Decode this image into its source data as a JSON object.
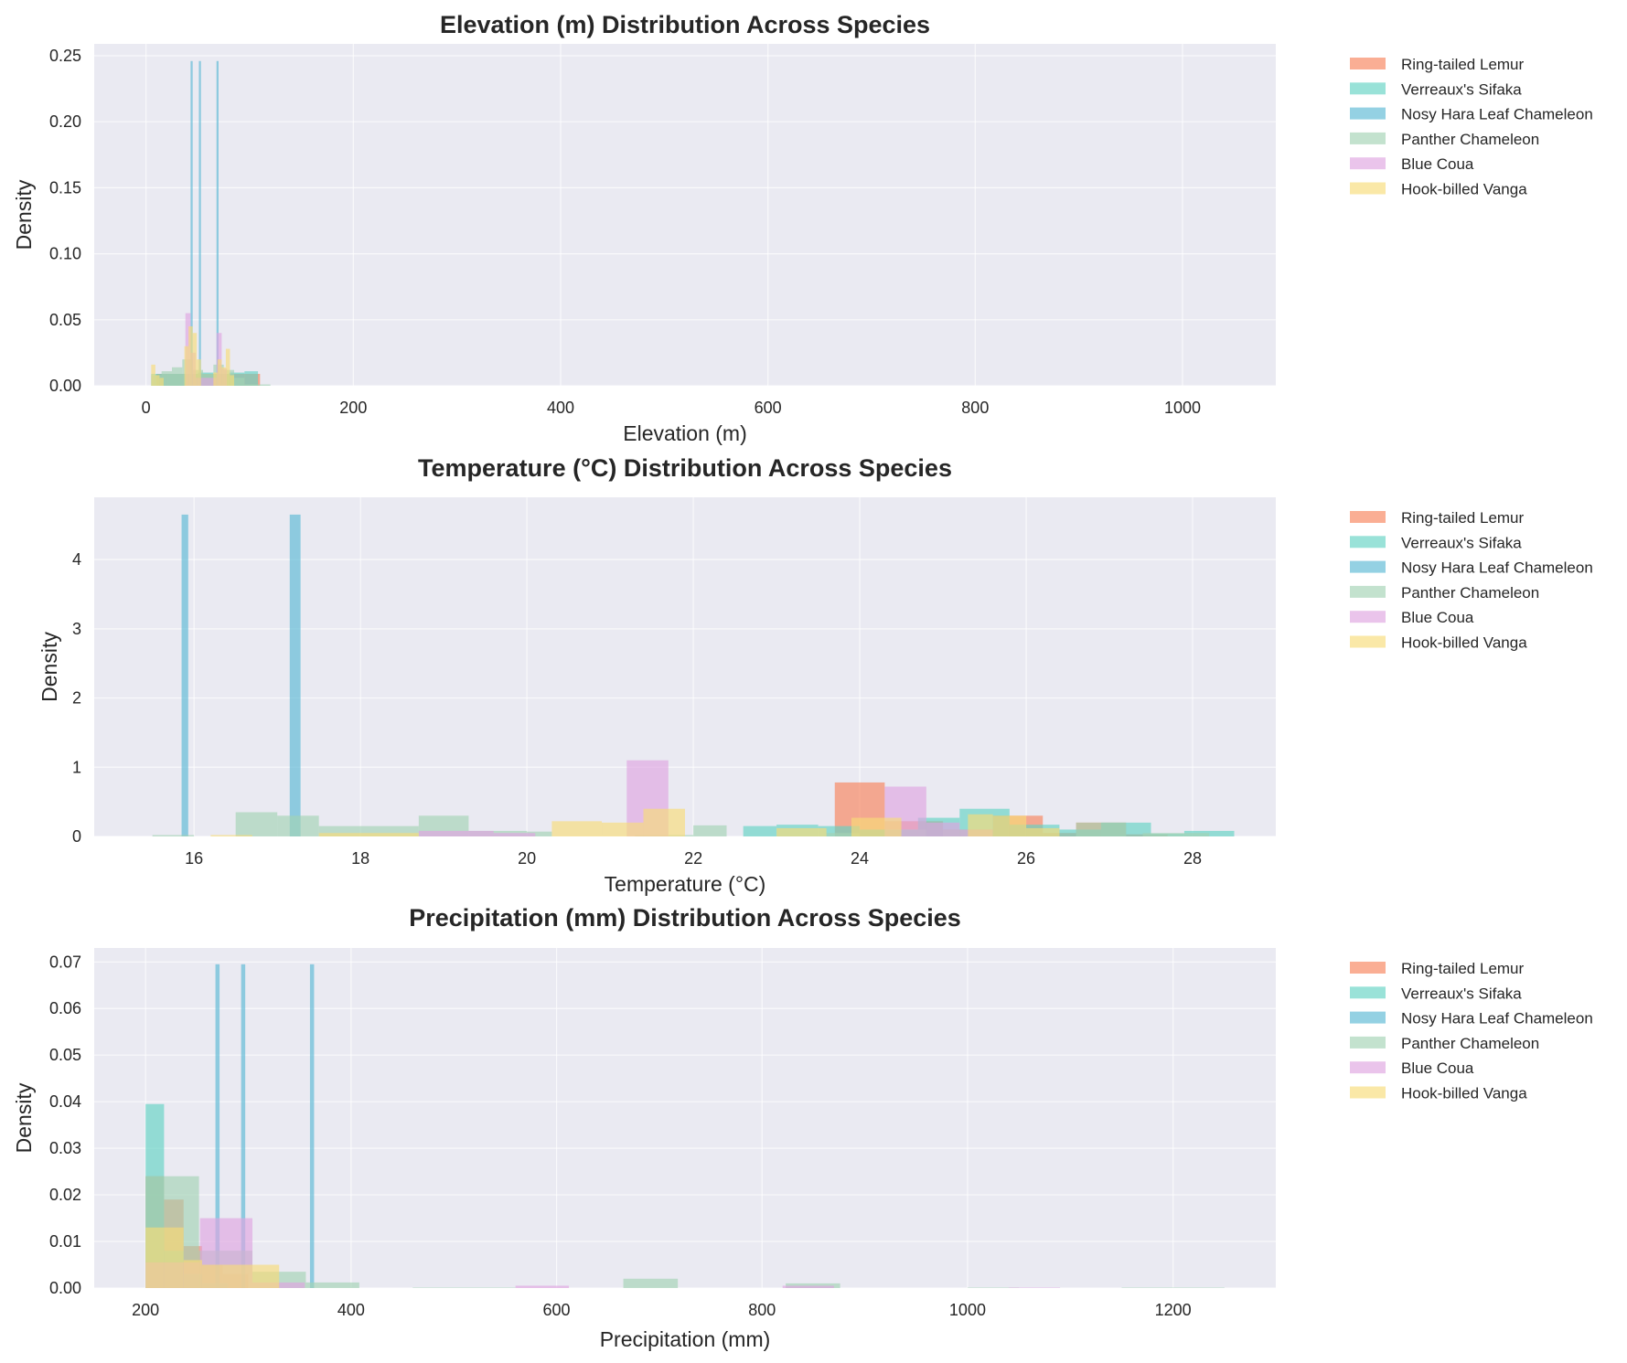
{
  "legend_entries": [
    {
      "name": "Ring-tailed Lemur",
      "color": "#f7825a"
    },
    {
      "name": "Verreaux's Sifaka",
      "color": "#62d2c3"
    },
    {
      "name": "Nosy Hara Leaf Chameleon",
      "color": "#5bb8d4"
    },
    {
      "name": "Panther Chameleon",
      "color": "#a3d2b4"
    },
    {
      "name": "Blue Coua",
      "color": "#dea5e0"
    },
    {
      "name": "Hook-billed Vanga",
      "color": "#f8dc78"
    }
  ],
  "chart_data": [
    {
      "type": "histogram",
      "title": "Elevation (m) Distribution Across Species",
      "xlabel": "Elevation (m)",
      "ylabel": "Density",
      "xlim": [
        -50,
        1090
      ],
      "ylim": [
        0,
        0.259
      ],
      "xticks": [
        0,
        200,
        400,
        600,
        800,
        1000
      ],
      "yticks": [
        0.0,
        0.05,
        0.1,
        0.15,
        0.2,
        0.25
      ],
      "ytick_labels": [
        "0.00",
        "0.05",
        "0.10",
        "0.15",
        "0.20",
        "0.25"
      ],
      "grid": true,
      "legend_position": "outside-right",
      "series": [
        {
          "name": "Ring-tailed Lemur",
          "bins": [
            [
              10,
              25,
              0.009
            ],
            [
              25,
              40,
              0.009
            ],
            [
              40,
              55,
              0.009
            ],
            [
              55,
              70,
              0.009
            ],
            [
              70,
              85,
              0.009
            ],
            [
              85,
              100,
              0.009
            ],
            [
              100,
              110,
              0.009
            ]
          ]
        },
        {
          "name": "Verreaux's Sifaka",
          "bins": [
            [
              5,
              20,
              0.009
            ],
            [
              20,
              35,
              0.009
            ],
            [
              35,
              50,
              0.009
            ],
            [
              50,
              65,
              0.01
            ],
            [
              65,
              80,
              0.009
            ],
            [
              80,
              95,
              0.01
            ],
            [
              95,
              108,
              0.011
            ]
          ]
        },
        {
          "name": "Nosy Hara Leaf Chameleon",
          "bins": [
            [
              43,
              45,
              0.246
            ],
            [
              51,
              53,
              0.246
            ],
            [
              68,
              70,
              0.246
            ]
          ]
        },
        {
          "name": "Panther Chameleon",
          "bins": [
            [
              5,
              15,
              0.008
            ],
            [
              15,
              25,
              0.011
            ],
            [
              25,
              35,
              0.014
            ],
            [
              35,
              45,
              0.02
            ],
            [
              45,
              55,
              0.012
            ],
            [
              55,
              65,
              0.009
            ],
            [
              65,
              75,
              0.016
            ],
            [
              75,
              85,
              0.012
            ],
            [
              85,
              95,
              0.006
            ],
            [
              95,
              120,
              0.001
            ]
          ]
        },
        {
          "name": "Blue Coua",
          "bins": [
            [
              38,
              43,
              0.055
            ],
            [
              43,
              48,
              0.025
            ],
            [
              48,
              53,
              0.006
            ],
            [
              53,
              63,
              0.006
            ],
            [
              63,
              68,
              0.006
            ],
            [
              68,
              73,
              0.04
            ],
            [
              73,
              78,
              0.013
            ]
          ]
        },
        {
          "name": "Hook-billed Vanga",
          "bins": [
            [
              5,
              9,
              0.016
            ],
            [
              9,
              13,
              0.008
            ],
            [
              13,
              17,
              0.006
            ],
            [
              37,
              41,
              0.03
            ],
            [
              41,
              45,
              0.045
            ],
            [
              45,
              49,
              0.04
            ],
            [
              49,
              53,
              0.02
            ],
            [
              65,
              69,
              0.01
            ],
            [
              69,
              73,
              0.02
            ],
            [
              73,
              77,
              0.014
            ],
            [
              77,
              81,
              0.028
            ],
            [
              81,
              85,
              0.008
            ]
          ]
        }
      ]
    },
    {
      "type": "histogram",
      "title": "Temperature (°C) Distribution Across Species",
      "xlabel": "Temperature (°C)",
      "ylabel": "Density",
      "xlim": [
        14.8,
        29.0
      ],
      "ylim": [
        0,
        4.9
      ],
      "xticks": [
        16,
        18,
        20,
        22,
        24,
        26,
        28
      ],
      "yticks": [
        0,
        1,
        2,
        3,
        4
      ],
      "ytick_labels": [
        "0",
        "1",
        "2",
        "3",
        "4"
      ],
      "grid": true,
      "legend_position": "outside-right",
      "series": [
        {
          "name": "Ring-tailed Lemur",
          "bins": [
            [
              23.7,
              24.3,
              0.78
            ],
            [
              24.3,
              25.0,
              0.22
            ],
            [
              25.0,
              25.6,
              0.1
            ],
            [
              25.6,
              26.2,
              0.3
            ],
            [
              26.2,
              26.6,
              0.05
            ],
            [
              26.6,
              27.2,
              0.2
            ],
            [
              27.2,
              27.7,
              0.03
            ]
          ]
        },
        {
          "name": "Verreaux's Sifaka",
          "bins": [
            [
              22.6,
              23.0,
              0.15
            ],
            [
              23.0,
              23.5,
              0.17
            ],
            [
              23.5,
              24.0,
              0.15
            ],
            [
              24.0,
              24.7,
              0.1
            ],
            [
              24.7,
              25.2,
              0.27
            ],
            [
              25.2,
              25.8,
              0.4
            ],
            [
              25.8,
              26.4,
              0.17
            ],
            [
              26.4,
              26.9,
              0.1
            ],
            [
              26.9,
              27.5,
              0.2
            ],
            [
              27.5,
              27.9,
              0.04
            ],
            [
              27.9,
              28.5,
              0.08
            ]
          ]
        },
        {
          "name": "Nosy Hara Leaf Chameleon",
          "bins": [
            [
              15.85,
              15.93,
              4.65
            ],
            [
              17.15,
              17.28,
              4.65
            ]
          ]
        },
        {
          "name": "Panther Chameleon",
          "bins": [
            [
              15.5,
              16.0,
              0.02
            ],
            [
              16.5,
              17.0,
              0.35
            ],
            [
              17.0,
              17.5,
              0.3
            ],
            [
              17.5,
              18.7,
              0.15
            ],
            [
              18.7,
              19.3,
              0.3
            ],
            [
              19.3,
              20.0,
              0.08
            ],
            [
              20.0,
              20.3,
              0.07
            ],
            [
              21.3,
              22.0,
              0.02
            ],
            [
              22.0,
              22.4,
              0.16
            ],
            [
              23.6,
              24.0,
              0.05
            ],
            [
              24.3,
              24.8,
              0.1
            ],
            [
              25.0,
              25.6,
              0.1
            ],
            [
              26.6,
              27.2,
              0.2
            ],
            [
              27.4,
              28.2,
              0.05
            ]
          ]
        },
        {
          "name": "Blue Coua",
          "bins": [
            [
              18.7,
              19.6,
              0.08
            ],
            [
              19.6,
              20.1,
              0.05
            ],
            [
              21.2,
              21.7,
              1.1
            ],
            [
              24.3,
              24.8,
              0.72
            ],
            [
              24.8,
              25.2,
              0.2
            ],
            [
              25.2,
              25.6,
              0.1
            ]
          ]
        },
        {
          "name": "Hook-billed Vanga",
          "bins": [
            [
              16.2,
              16.7,
              0.02
            ],
            [
              17.5,
              18.7,
              0.05
            ],
            [
              20.3,
              20.9,
              0.22
            ],
            [
              20.9,
              21.4,
              0.2
            ],
            [
              21.4,
              21.9,
              0.4
            ],
            [
              23.0,
              23.6,
              0.12
            ],
            [
              23.9,
              24.5,
              0.27
            ],
            [
              25.3,
              25.6,
              0.32
            ],
            [
              25.6,
              26.0,
              0.3
            ],
            [
              26.0,
              26.4,
              0.12
            ]
          ]
        }
      ]
    },
    {
      "type": "histogram",
      "title": "Precipitation (mm) Distribution Across Species",
      "xlabel": "Precipitation (mm)",
      "ylabel": "Density",
      "xlim": [
        150,
        1300
      ],
      "ylim": [
        0,
        0.073
      ],
      "xticks": [
        200,
        400,
        600,
        800,
        1000,
        1200
      ],
      "yticks": [
        0.0,
        0.01,
        0.02,
        0.03,
        0.04,
        0.05,
        0.06,
        0.07
      ],
      "ytick_labels": [
        "0.00",
        "0.01",
        "0.02",
        "0.03",
        "0.04",
        "0.05",
        "0.06",
        "0.07"
      ],
      "grid": true,
      "legend_position": "outside-right",
      "series": [
        {
          "name": "Ring-tailed Lemur",
          "bins": [
            [
              200,
              218,
              0.024
            ],
            [
              218,
              237,
              0.019
            ],
            [
              237,
              255,
              0.009
            ],
            [
              255,
              275,
              0.005
            ],
            [
              275,
              300,
              0.003
            ]
          ]
        },
        {
          "name": "Verreaux's Sifaka",
          "bins": [
            [
              200,
              218,
              0.0395
            ],
            [
              218,
              237,
              0.008
            ],
            [
              237,
              255,
              0.003
            ],
            [
              255,
              280,
              0.001
            ]
          ]
        },
        {
          "name": "Nosy Hara Leaf Chameleon",
          "bins": [
            [
              268,
              272,
              0.0695
            ],
            [
              293,
              297,
              0.0695
            ],
            [
              360,
              364,
              0.0695
            ]
          ]
        },
        {
          "name": "Panther Chameleon",
          "bins": [
            [
              200,
              252,
              0.024
            ],
            [
              252,
              304,
              0.008
            ],
            [
              304,
              356,
              0.0035
            ],
            [
              356,
              408,
              0.0012
            ],
            [
              460,
              560,
              0.0001
            ],
            [
              665,
              718,
              0.002
            ],
            [
              823,
              876,
              0.001
            ],
            [
              1000,
              1050,
              0.0001
            ],
            [
              1150,
              1250,
              0.0001
            ]
          ]
        },
        {
          "name": "Blue Coua",
          "bins": [
            [
              200,
              253,
              0.0055
            ],
            [
              253,
              304,
              0.015
            ],
            [
              304,
              355,
              0.0012
            ],
            [
              560,
              612,
              0.0005
            ],
            [
              820,
              870,
              0.0005
            ],
            [
              1040,
              1090,
              0.0001
            ]
          ]
        },
        {
          "name": "Hook-billed Vanga",
          "bins": [
            [
              200,
              218,
              0.013
            ],
            [
              218,
              237,
              0.013
            ],
            [
              237,
              255,
              0.006
            ],
            [
              255,
              330,
              0.005
            ]
          ]
        }
      ]
    }
  ]
}
